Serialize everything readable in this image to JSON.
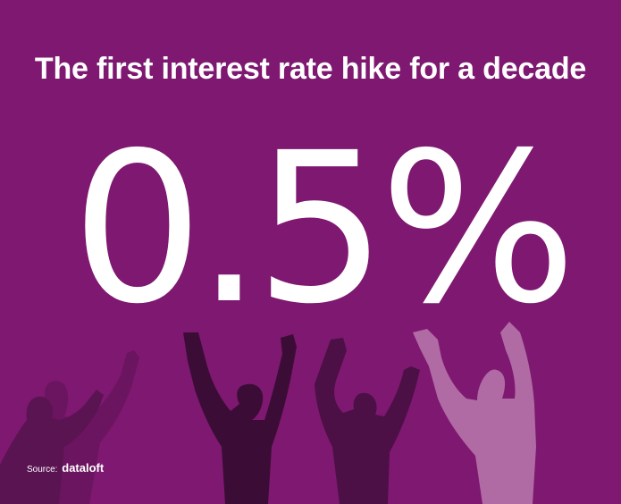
{
  "headline": "The first interest rate hike for a decade",
  "stat": "0.5%",
  "source": {
    "label": "Source:",
    "brand": "dataloft"
  },
  "colors": {
    "background": "#7e1870",
    "text": "#ffffff",
    "silhouette_light": "#b46aa8",
    "silhouette_mid": "#5a1150",
    "silhouette_dark": "#3a0b33"
  }
}
